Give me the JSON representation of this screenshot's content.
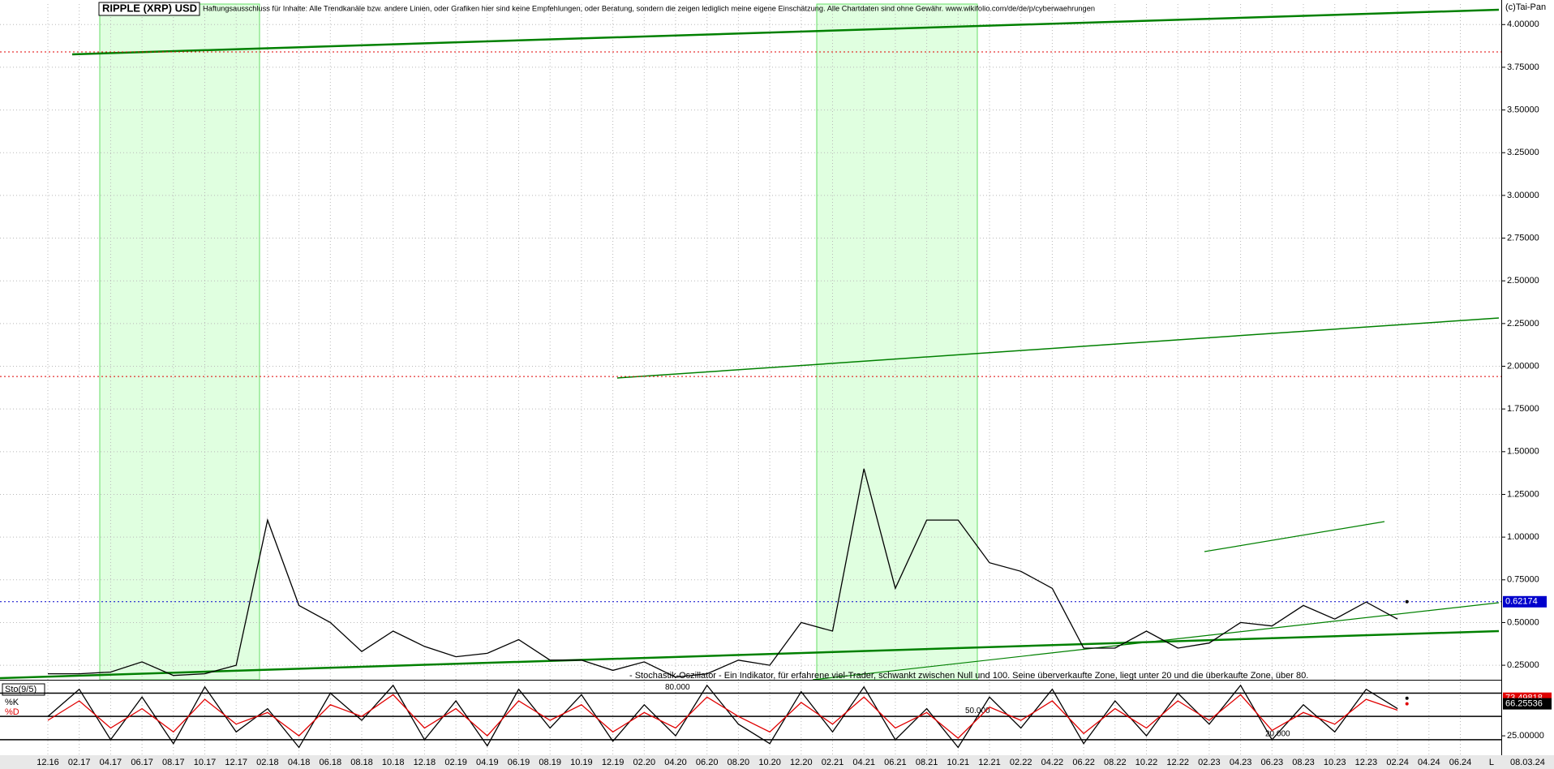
{
  "chart_data": [
    {
      "type": "line",
      "title": "RIPPLE (XRP) USD",
      "subtitle": "Haftungsausschluss für Inhalte: Alle Trendkanäle bzw. andere Linien, oder Grafiken hier sind keine Empfehlungen, oder Beratung, sondern die zeigen lediglich meine eigene Einschätzung. Alle Chartdaten sind ohne Gewähr. www.wikifolio.com/de/de/p/cyberwaehrungen",
      "annotation": "(c)Tai-Pan",
      "categories": [
        "12.16",
        "02.17",
        "04.17",
        "06.17",
        "08.17",
        "10.17",
        "12.17",
        "02.18",
        "04.18",
        "06.18",
        "08.18",
        "10.18",
        "12.18",
        "02.19",
        "04.19",
        "06.19",
        "08.19",
        "10.19",
        "12.19",
        "02.20",
        "04.20",
        "06.20",
        "08.20",
        "10.20",
        "12.20",
        "02.21",
        "04.21",
        "06.21",
        "08.21",
        "10.21",
        "12.21",
        "02.22",
        "04.22",
        "06.22",
        "08.22",
        "10.22",
        "12.22",
        "02.23",
        "04.23",
        "06.23",
        "08.23",
        "10.23",
        "12.23",
        "02.24",
        "04.24",
        "06.24"
      ],
      "series": [
        {
          "color": "#000000",
          "values": [
            0.2,
            0.2,
            0.21,
            0.27,
            0.19,
            0.2,
            0.25,
            1.1,
            0.6,
            0.5,
            0.33,
            0.45,
            0.36,
            0.3,
            0.32,
            0.4,
            0.28,
            0.28,
            0.22,
            0.27,
            0.18,
            0.2,
            0.28,
            0.25,
            0.5,
            0.45,
            1.4,
            0.7,
            1.1,
            1.1,
            0.85,
            0.8,
            0.7,
            0.35,
            0.35,
            0.45,
            0.35,
            0.38,
            0.5,
            0.48,
            0.6,
            0.52,
            0.62,
            0.52,
            null,
            null
          ]
        }
      ],
      "last_date": "08.03.24",
      "last_value": {
        "value": 0.62174,
        "label": "0.62174"
      },
      "reference_lines": [
        3.84,
        1.94
      ],
      "reference_color": "#e00000",
      "ylim": [
        0.165,
        4.12
      ],
      "yticks": [
        {
          "value": 0.25,
          "label": "0.25000"
        },
        {
          "value": 0.5,
          "label": "0.50000"
        },
        {
          "value": 0.75,
          "label": "0.75000"
        },
        {
          "value": 1,
          "label": "1.00000"
        },
        {
          "value": 1.25,
          "label": "1.25000"
        },
        {
          "value": 1.5,
          "label": "1.50000"
        },
        {
          "value": 1.75,
          "label": "1.75000"
        },
        {
          "value": 2,
          "label": "2.00000"
        },
        {
          "value": 2.25,
          "label": "2.25000"
        },
        {
          "value": 2.5,
          "label": "2.50000"
        },
        {
          "value": 2.75,
          "label": "2.75000"
        },
        {
          "value": 3,
          "label": "3.00000"
        },
        {
          "value": 3.25,
          "label": "3.25000"
        },
        {
          "value": 3.5,
          "label": "3.50000"
        },
        {
          "value": 3.75,
          "label": "3.75000"
        },
        {
          "value": 4,
          "label": "4.00000"
        }
      ],
      "grid": true,
      "scale_label": "L"
    },
    {
      "type": "line",
      "title": "Sto(9/5)",
      "annotation": "- Stochastik-Oszillator - Ein Indikator, für erfahrene viel-Trader, schwankt zwischen Null und 100. Seine überverkaufte Zone, liegt unter 20 und die überkaufte Zone, über 80.",
      "series": [
        {
          "name": "%K",
          "color": "#000000",
          "values": [
            50,
            85,
            20,
            75,
            15,
            88,
            30,
            60,
            10,
            80,
            45,
            90,
            20,
            70,
            12,
            85,
            35,
            78,
            18,
            65,
            25,
            90,
            40,
            15,
            82,
            30,
            88,
            20,
            60,
            10,
            75,
            35,
            85,
            15,
            70,
            25,
            80,
            40,
            90,
            20,
            65,
            30,
            85,
            60,
            null,
            null
          ],
          "last": {
            "value": 73.49818,
            "label": "73.49818"
          }
        },
        {
          "name": "%D",
          "color": "#e00000",
          "values": [
            45,
            70,
            35,
            60,
            30,
            72,
            40,
            55,
            25,
            65,
            50,
            78,
            35,
            60,
            25,
            70,
            45,
            65,
            30,
            55,
            35,
            75,
            50,
            30,
            68,
            40,
            75,
            35,
            55,
            22,
            62,
            45,
            70,
            28,
            60,
            35,
            70,
            45,
            78,
            32,
            55,
            40,
            72,
            58,
            null,
            null
          ],
          "last": {
            "value": 66.25536,
            "label": "66.25536"
          }
        }
      ],
      "levels": [
        {
          "value": 80,
          "label": "80.000"
        },
        {
          "value": 50,
          "label": "50.000"
        },
        {
          "value": 20,
          "label": "20.000"
        }
      ],
      "ylim": [
        0,
        92
      ],
      "yticks": [
        {
          "value": 25,
          "label": "25.00000"
        }
      ]
    }
  ]
}
